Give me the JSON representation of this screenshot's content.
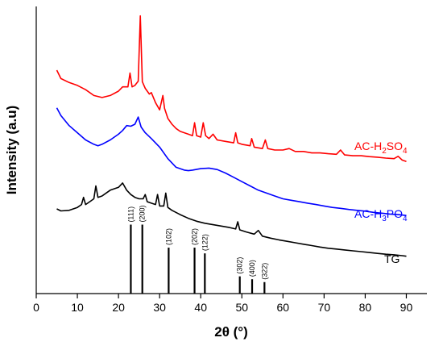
{
  "chart_data": {
    "type": "line",
    "xlabel": "2θ (°)",
    "ylabel": "Intensity (a.u)",
    "xlim": [
      0,
      95
    ],
    "xticks": [
      0,
      10,
      20,
      30,
      40,
      50,
      60,
      70,
      80,
      90
    ],
    "grid": false,
    "yticks_shown": false,
    "series": [
      {
        "name_main": "AC-H",
        "name_sub1": "2",
        "name_mid": "SO",
        "name_sub2": "4",
        "color": "#ff0000",
        "points": [
          [
            5,
            0.778
          ],
          [
            6,
            0.749
          ],
          [
            8,
            0.735
          ],
          [
            10,
            0.725
          ],
          [
            12,
            0.71
          ],
          [
            14,
            0.69
          ],
          [
            16,
            0.683
          ],
          [
            18,
            0.69
          ],
          [
            20,
            0.705
          ],
          [
            21,
            0.72
          ],
          [
            22.3,
            0.72
          ],
          [
            22.8,
            0.768
          ],
          [
            23.3,
            0.72
          ],
          [
            24,
            0.725
          ],
          [
            24.8,
            0.74
          ],
          [
            25.3,
            0.967
          ],
          [
            25.8,
            0.738
          ],
          [
            26.5,
            0.715
          ],
          [
            27.5,
            0.695
          ],
          [
            28,
            0.7
          ],
          [
            29,
            0.665
          ],
          [
            30,
            0.64
          ],
          [
            30.8,
            0.69
          ],
          [
            31.2,
            0.645
          ],
          [
            32,
            0.61
          ],
          [
            33,
            0.59
          ],
          [
            34,
            0.575
          ],
          [
            35,
            0.565
          ],
          [
            36,
            0.56
          ],
          [
            37,
            0.555
          ],
          [
            38,
            0.55
          ],
          [
            38.5,
            0.595
          ],
          [
            39,
            0.55
          ],
          [
            40,
            0.545
          ],
          [
            40.6,
            0.595
          ],
          [
            41.2,
            0.55
          ],
          [
            42,
            0.54
          ],
          [
            43,
            0.555
          ],
          [
            44,
            0.535
          ],
          [
            46,
            0.53
          ],
          [
            48,
            0.525
          ],
          [
            48.5,
            0.56
          ],
          [
            49,
            0.525
          ],
          [
            50,
            0.52
          ],
          [
            52,
            0.515
          ],
          [
            52.4,
            0.54
          ],
          [
            53,
            0.51
          ],
          [
            55,
            0.505
          ],
          [
            55.7,
            0.535
          ],
          [
            56.3,
            0.505
          ],
          [
            58,
            0.5
          ],
          [
            60,
            0.5
          ],
          [
            61.5,
            0.505
          ],
          [
            63,
            0.495
          ],
          [
            65,
            0.495
          ],
          [
            67,
            0.49
          ],
          [
            69,
            0.49
          ],
          [
            71,
            0.487
          ],
          [
            73,
            0.485
          ],
          [
            74,
            0.5
          ],
          [
            75,
            0.483
          ],
          [
            77,
            0.48
          ],
          [
            79,
            0.48
          ],
          [
            81,
            0.477
          ],
          [
            83,
            0.475
          ],
          [
            85,
            0.472
          ],
          [
            87,
            0.47
          ],
          [
            88,
            0.478
          ],
          [
            89,
            0.465
          ],
          [
            90,
            0.46
          ]
        ]
      },
      {
        "name_main": "AC-H",
        "name_sub1": "3",
        "name_mid": "PO",
        "name_sub2": "4",
        "color": "#0000ff",
        "points": [
          [
            5,
            0.647
          ],
          [
            6,
            0.62
          ],
          [
            8,
            0.585
          ],
          [
            10,
            0.56
          ],
          [
            12,
            0.535
          ],
          [
            14,
            0.52
          ],
          [
            15,
            0.515
          ],
          [
            16,
            0.52
          ],
          [
            18,
            0.535
          ],
          [
            20,
            0.555
          ],
          [
            21,
            0.568
          ],
          [
            22,
            0.585
          ],
          [
            23,
            0.583
          ],
          [
            24,
            0.59
          ],
          [
            24.8,
            0.615
          ],
          [
            25.5,
            0.58
          ],
          [
            26.5,
            0.56
          ],
          [
            28,
            0.54
          ],
          [
            30,
            0.51
          ],
          [
            32,
            0.47
          ],
          [
            34,
            0.44
          ],
          [
            35,
            0.435
          ],
          [
            36,
            0.43
          ],
          [
            37,
            0.428
          ],
          [
            38,
            0.43
          ],
          [
            40,
            0.435
          ],
          [
            42,
            0.437
          ],
          [
            44,
            0.432
          ],
          [
            46,
            0.42
          ],
          [
            48,
            0.405
          ],
          [
            50,
            0.39
          ],
          [
            52,
            0.375
          ],
          [
            54,
            0.36
          ],
          [
            56,
            0.35
          ],
          [
            58,
            0.34
          ],
          [
            60,
            0.33
          ],
          [
            62,
            0.325
          ],
          [
            64,
            0.32
          ],
          [
            66,
            0.315
          ],
          [
            68,
            0.31
          ],
          [
            70,
            0.305
          ],
          [
            72,
            0.3
          ],
          [
            74,
            0.297
          ],
          [
            76,
            0.293
          ],
          [
            78,
            0.29
          ],
          [
            80,
            0.287
          ],
          [
            82,
            0.283
          ],
          [
            84,
            0.28
          ],
          [
            86,
            0.277
          ],
          [
            88,
            0.275
          ],
          [
            90,
            0.272
          ]
        ]
      },
      {
        "name": "TG",
        "color": "#000000",
        "points": [
          [
            5,
            0.295
          ],
          [
            6,
            0.288
          ],
          [
            8,
            0.29
          ],
          [
            10,
            0.3
          ],
          [
            11,
            0.31
          ],
          [
            11.5,
            0.335
          ],
          [
            12,
            0.31
          ],
          [
            13,
            0.32
          ],
          [
            14,
            0.33
          ],
          [
            14.5,
            0.375
          ],
          [
            15,
            0.335
          ],
          [
            16,
            0.34
          ],
          [
            18,
            0.36
          ],
          [
            20,
            0.37
          ],
          [
            21,
            0.385
          ],
          [
            22,
            0.36
          ],
          [
            23,
            0.345
          ],
          [
            24,
            0.335
          ],
          [
            25,
            0.33
          ],
          [
            26,
            0.33
          ],
          [
            26.5,
            0.345
          ],
          [
            27,
            0.32
          ],
          [
            28,
            0.315
          ],
          [
            29,
            0.31
          ],
          [
            29.5,
            0.345
          ],
          [
            30,
            0.305
          ],
          [
            31,
            0.305
          ],
          [
            31.5,
            0.35
          ],
          [
            32,
            0.3
          ],
          [
            33,
            0.29
          ],
          [
            35,
            0.275
          ],
          [
            37,
            0.262
          ],
          [
            39,
            0.252
          ],
          [
            41,
            0.245
          ],
          [
            43,
            0.24
          ],
          [
            45,
            0.235
          ],
          [
            47,
            0.23
          ],
          [
            48.5,
            0.225
          ],
          [
            49,
            0.25
          ],
          [
            49.5,
            0.222
          ],
          [
            51,
            0.215
          ],
          [
            53,
            0.207
          ],
          [
            54,
            0.22
          ],
          [
            55,
            0.2
          ],
          [
            57,
            0.193
          ],
          [
            59,
            0.187
          ],
          [
            61,
            0.182
          ],
          [
            63,
            0.177
          ],
          [
            65,
            0.172
          ],
          [
            67,
            0.167
          ],
          [
            69,
            0.162
          ],
          [
            71,
            0.158
          ],
          [
            73,
            0.155
          ],
          [
            75,
            0.152
          ],
          [
            77,
            0.149
          ],
          [
            79,
            0.146
          ],
          [
            81,
            0.143
          ],
          [
            83,
            0.14
          ],
          [
            85,
            0.137
          ],
          [
            87,
            0.135
          ],
          [
            89,
            0.132
          ],
          [
            90,
            0.13
          ]
        ]
      }
    ],
    "reference_peaks": [
      {
        "label": "(111)",
        "x": 23.0,
        "height": 0.24
      },
      {
        "label": "(200)",
        "x": 25.8,
        "height": 0.24
      },
      {
        "label": "(102)",
        "x": 32.2,
        "height": 0.16
      },
      {
        "label": "(202)",
        "x": 38.5,
        "height": 0.16
      },
      {
        "label": "(122)",
        "x": 41.0,
        "height": 0.14
      },
      {
        "label": "(302)",
        "x": 49.5,
        "height": 0.06
      },
      {
        "label": "(400)",
        "x": 52.5,
        "height": 0.05
      },
      {
        "label": "(322)",
        "x": 55.5,
        "height": 0.04
      }
    ]
  }
}
